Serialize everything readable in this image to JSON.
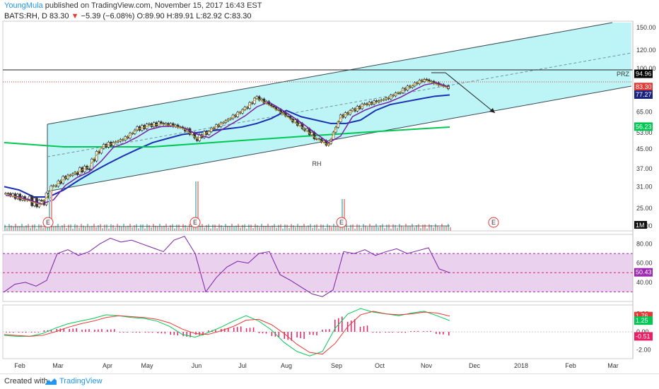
{
  "header": {
    "user": "YoungMula",
    "published_text": "published on TradingView.com, November 15, 2017 16:43 EST",
    "symbol": "BATS:RH, D",
    "last": "83.30",
    "arrow": "▼",
    "change": "−5.39 (−6.08%)",
    "ohlc": "O:89.90 H:89.91 L:82.92 C:83.30"
  },
  "footer": {
    "created_with": "Created with",
    "brand": "TradingView"
  },
  "chart_data": [
    {
      "type": "candlestick",
      "title": "BATS:RH, D",
      "watermark": "RH",
      "ylabels": [
        "150.00",
        "120.00",
        "100.00",
        "80.00",
        "65.00",
        "53.00",
        "45.00",
        "37.00",
        "31.00",
        "25.00",
        "21.00"
      ],
      "xlabels": [
        "Feb",
        "Mar",
        "Apr",
        "May",
        "Jun",
        "Jul",
        "Aug",
        "Sep",
        "Oct",
        "Nov",
        "Dec",
        "2018",
        "Feb",
        "Mar"
      ],
      "price_tags": [
        {
          "label": "94.96",
          "color": "#000000"
        },
        {
          "label": "83.30",
          "color": "#e53935"
        },
        {
          "label": "77.27",
          "color": "#1a237e"
        },
        {
          "label": "56.23",
          "color": "#00c853"
        }
      ],
      "annotations": [
        "PRZ"
      ],
      "events": [
        "E",
        "E",
        "E",
        "E"
      ],
      "volume_tag": "1M",
      "series": [
        {
          "name": "close",
          "values": [
            29,
            28,
            27,
            26,
            31,
            34,
            36,
            38,
            46,
            48,
            50,
            55,
            57,
            58,
            57,
            55,
            50,
            54,
            58,
            62,
            67,
            75,
            70,
            65,
            60,
            55,
            50,
            47,
            62,
            66,
            70,
            72,
            75,
            80,
            85,
            90,
            86,
            83
          ]
        },
        {
          "name": "ma_blue",
          "values": [
            31,
            30,
            28,
            28,
            30,
            33,
            36,
            39,
            42,
            45,
            48,
            50,
            52,
            53,
            54,
            55,
            56,
            58,
            61,
            66,
            62,
            60,
            58,
            58,
            60,
            66,
            70,
            72,
            74,
            76,
            77
          ]
        },
        {
          "name": "ma_green",
          "values": [
            48,
            47,
            46,
            46,
            46,
            46,
            47,
            48,
            49,
            50,
            51,
            52,
            53,
            54,
            55,
            56
          ]
        }
      ]
    },
    {
      "type": "line",
      "title": "RSI",
      "ylabels": [
        "80.00",
        "60.00",
        "40.00"
      ],
      "value_tag": "50.43",
      "ylim": [
        20,
        90
      ],
      "levels": [
        70,
        50,
        30
      ],
      "series": [
        {
          "name": "rsi",
          "values": [
            30,
            38,
            40,
            36,
            42,
            70,
            74,
            68,
            72,
            80,
            86,
            82,
            84,
            80,
            76,
            72,
            84,
            88,
            70,
            30,
            45,
            56,
            62,
            60,
            70,
            72,
            48,
            42,
            35,
            28,
            25,
            32,
            72,
            70,
            74,
            68,
            72,
            75,
            70,
            73,
            76,
            54,
            50
          ]
        }
      ]
    },
    {
      "type": "line",
      "title": "MACD",
      "ylabels": [
        "2.00",
        "0.00",
        "-2.00"
      ],
      "value_tags": [
        {
          "label": "1.76",
          "color": "#e53935"
        },
        {
          "label": "1.25",
          "color": "#00c853"
        },
        {
          "label": "-0.51",
          "color": "#e91e63"
        }
      ],
      "ylim": [
        -3,
        3
      ],
      "series": [
        {
          "name": "macd",
          "values": [
            -0.4,
            -0.5,
            -0.5,
            -0.2,
            0.4,
            0.9,
            1.2,
            1.5,
            1.9,
            1.8,
            1.6,
            1.5,
            1.2,
            0.6,
            -0.3,
            -0.6,
            -0.1,
            0.5,
            1.2,
            1.8,
            1.2,
            0.2,
            -1.2,
            -2.2,
            -2.7,
            -2.2,
            0.4,
            2.0,
            2.6,
            2.2,
            2.0,
            1.8,
            2.1,
            2.3,
            1.8,
            1.25
          ]
        },
        {
          "name": "signal",
          "values": [
            -0.3,
            -0.4,
            -0.5,
            -0.4,
            0.0,
            0.5,
            0.9,
            1.2,
            1.6,
            1.8,
            1.7,
            1.6,
            1.4,
            1.0,
            0.3,
            -0.2,
            -0.3,
            0.1,
            0.6,
            1.3,
            1.4,
            0.8,
            -0.2,
            -1.4,
            -2.3,
            -2.5,
            -1.3,
            0.6,
            1.9,
            2.3,
            2.0,
            1.9,
            2.0,
            2.2,
            2.1,
            1.76
          ]
        },
        {
          "name": "hist",
          "values": [
            -0.1,
            -0.1,
            0,
            0.2,
            0.4,
            0.4,
            0.3,
            0.3,
            0.3,
            0,
            -0.1,
            -0.1,
            -0.2,
            -0.4,
            -0.6,
            -0.4,
            0.2,
            0.4,
            0.6,
            0.5,
            -0.2,
            -0.6,
            -1.0,
            -0.8,
            -0.4,
            0.3,
            1.7,
            1.4,
            0.7,
            -0.1,
            0,
            -0.1,
            0.1,
            0.1,
            -0.3,
            -0.51
          ]
        }
      ]
    }
  ]
}
